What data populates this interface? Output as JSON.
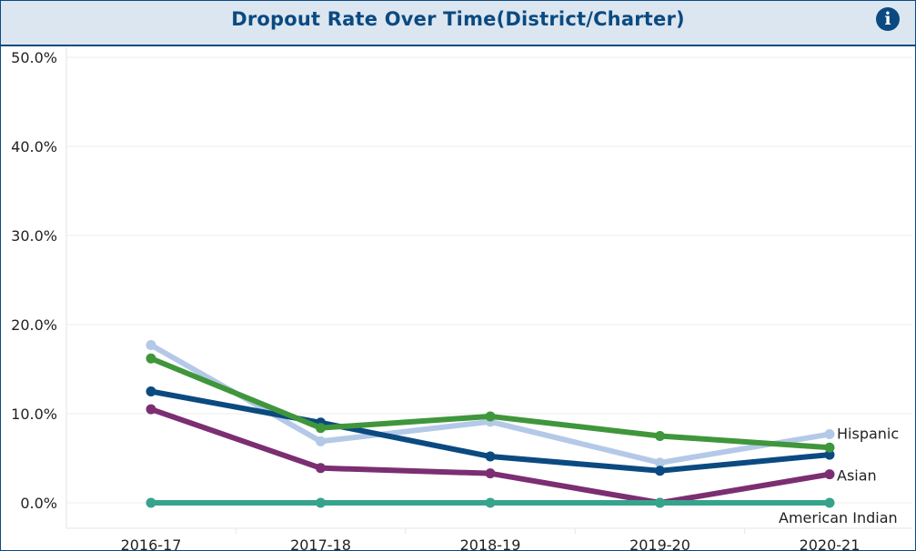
{
  "header": {
    "title": "Dropout Rate Over Time(District/Charter)",
    "info_icon": "info-icon"
  },
  "colors": {
    "header_bg": "#dce6f1",
    "title": "#0b4a80",
    "grid": "#ececec",
    "axis_text": "#222222"
  },
  "chart_data": {
    "type": "line",
    "categories": [
      "2016-17",
      "2017-18",
      "2018-19",
      "2019-20",
      "2020-21"
    ],
    "ylim": [
      0,
      50
    ],
    "yticks": [
      "0.0%",
      "10.0%",
      "20.0%",
      "30.0%",
      "40.0%",
      "50.0%"
    ],
    "ytick_values": [
      0,
      10,
      20,
      30,
      40,
      50
    ],
    "grid": true,
    "series": [
      {
        "name": "",
        "color": "#b3c9e7",
        "values": [
          17.7,
          6.9,
          9.1,
          4.5,
          7.7
        ]
      },
      {
        "name": "",
        "color": "#0b4a80",
        "values": [
          12.5,
          9.0,
          5.2,
          3.6,
          5.4
        ]
      },
      {
        "name": "",
        "color": "#3f963b",
        "values": [
          16.2,
          8.4,
          9.7,
          7.5,
          6.2
        ]
      },
      {
        "name": "",
        "color": "#7c2e72",
        "values": [
          10.5,
          3.9,
          3.3,
          0.0,
          3.2
        ]
      },
      {
        "name": "",
        "color": "#36a48c",
        "values": [
          0.0,
          0.0,
          0.0,
          0.0,
          0.0
        ]
      }
    ],
    "end_labels": [
      {
        "text": "Hispanic",
        "series": 0
      },
      {
        "text": "Asian",
        "series": 3
      },
      {
        "text": "American Indian",
        "series": 4
      }
    ]
  }
}
